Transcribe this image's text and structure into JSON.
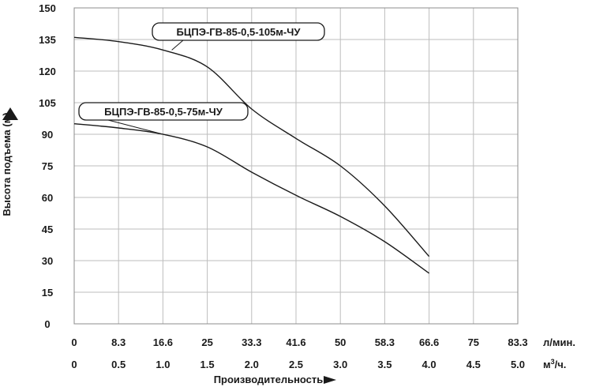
{
  "chart_data": {
    "type": "line",
    "ylabel": "Высота подъема (м)",
    "xlabel": "Производительность",
    "ylim": [
      0,
      150
    ],
    "xlim": [
      0,
      5.0
    ],
    "y_ticks": [
      "0",
      "15",
      "30",
      "45",
      "60",
      "75",
      "90",
      "105",
      "120",
      "135",
      "150"
    ],
    "x_ticks_flow_lmin": [
      "0",
      "8.3",
      "16.6",
      "25",
      "33.3",
      "41.6",
      "50",
      "58.3",
      "66.6",
      "75",
      "83.3"
    ],
    "x_unit_flow_lmin": "л/мин.",
    "x_ticks_flow_m3h": [
      "0",
      "0.5",
      "1.0",
      "1.5",
      "2.0",
      "2.5",
      "3.0",
      "3.5",
      "4.0",
      "4.5",
      "5.0"
    ],
    "x_unit_flow_m3h_base": "м",
    "x_unit_flow_m3h_sup": "3",
    "x_unit_flow_m3h_tail": "/ч.",
    "grid": true,
    "series": [
      {
        "name": "БЦПЭ-ГВ-85-0,5-105м-ЧУ",
        "x": [
          0,
          0.5,
          1.0,
          1.5,
          2.0,
          2.5,
          3.0,
          3.5,
          4.0
        ],
        "y": [
          136,
          134,
          130,
          122,
          102,
          88,
          75,
          56,
          32
        ]
      },
      {
        "name": "БЦПЭ-ГВ-85-0,5-75м-ЧУ",
        "x": [
          0,
          0.5,
          1.0,
          1.5,
          2.0,
          2.5,
          3.0,
          3.5,
          4.0
        ],
        "y": [
          95,
          93,
          90,
          84,
          72,
          61,
          51,
          39,
          24
        ]
      }
    ]
  }
}
